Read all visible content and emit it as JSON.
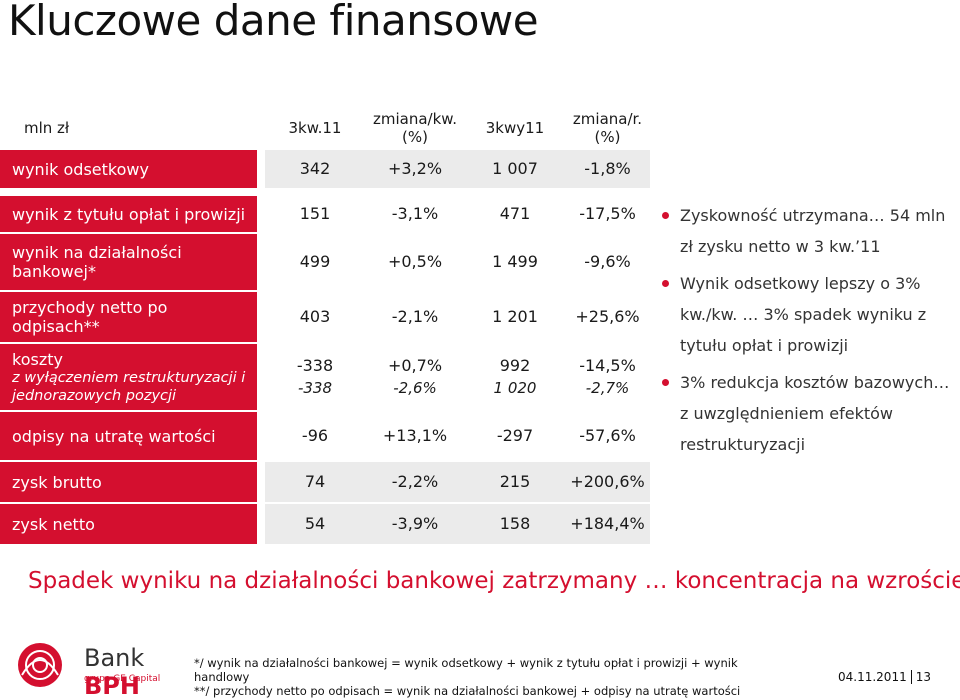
{
  "title": "Kluczowe dane finansowe",
  "table": {
    "unit_label": "mln zł",
    "columns": [
      "3kw.11",
      "zmiana/kw.\n(%)",
      "3kwy11",
      "zmiana/r.\n(%)"
    ],
    "col_labels": {
      "c1": "3kw.11",
      "c2_l1": "zmiana/kw.",
      "c2_l2": "(%)",
      "c3": "3kwy11",
      "c4_l1": "zmiana/r.",
      "c4_l2": "(%)"
    },
    "rows": [
      {
        "label": "wynik odsetkowy",
        "v1": "342",
        "v2": "+3,2%",
        "v3": "1 007",
        "v4": "-1,8%"
      },
      {
        "label": "wynik z tytułu opłat i prowizji",
        "v1": "151",
        "v2": "-3,1%",
        "v3": "471",
        "v4": "-17,5%"
      },
      {
        "label": "wynik na działalności bankowej*",
        "v1": "499",
        "v2": "+0,5%",
        "v3": "1 499",
        "v4": "-9,6%"
      },
      {
        "label": "przychody netto po odpisach**",
        "v1": "403",
        "v2": "-2,1%",
        "v3": "1 201",
        "v4": "+25,6%"
      },
      {
        "label": "koszty",
        "sublabel": "z wyłączeniem restrukturyzacji i jednorazowych pozycji",
        "v1": "-338",
        "v1b": "-338",
        "v2": "+0,7%",
        "v2b": "-2,6%",
        "v3": "992",
        "v3b": "1 020",
        "v4": "-14,5%",
        "v4b": "-2,7%"
      },
      {
        "label": "odpisy na utratę wartości",
        "v1": "-96",
        "v2": "+13,1%",
        "v3": "-297",
        "v4": "-57,6%"
      },
      {
        "label": "zysk brutto",
        "v1": "74",
        "v2": "-2,2%",
        "v3": "215",
        "v4": "+200,6%"
      },
      {
        "label": "zysk netto",
        "v1": "54",
        "v2": "-3,9%",
        "v3": "158",
        "v4": "+184,4%"
      }
    ]
  },
  "bullets": [
    "Zyskowność utrzymana… 54 mln zł zysku netto w 3 kw.’11",
    "Wynik odsetkowy lepszy o 3% kw./kw. … 3% spadek wyniku z tytułu opłat i prowizji",
    "3% redukcja kosztów bazowych… z uwzględnieniem efektów restrukturyzacji"
  ],
  "headline": "Spadek wyniku na działalności bankowej zatrzymany … koncentracja na wzroście",
  "footnotes": [
    "*/ wynik na działalności bankowej = wynik odsetkowy + wynik z tytułu opłat i prowizji + wynik handlowy",
    "**/ przychody netto po odpisach = wynik na działalności bankowej + odpisy na utratę wartości"
  ],
  "logo": {
    "bank": "Bank",
    "brand": "BPH",
    "grupa": "grupa GE Capital"
  },
  "date": "04.11.2011",
  "page_number": "13",
  "colors": {
    "accent": "#d40f2f",
    "cell_bg": "#ebebeb"
  }
}
